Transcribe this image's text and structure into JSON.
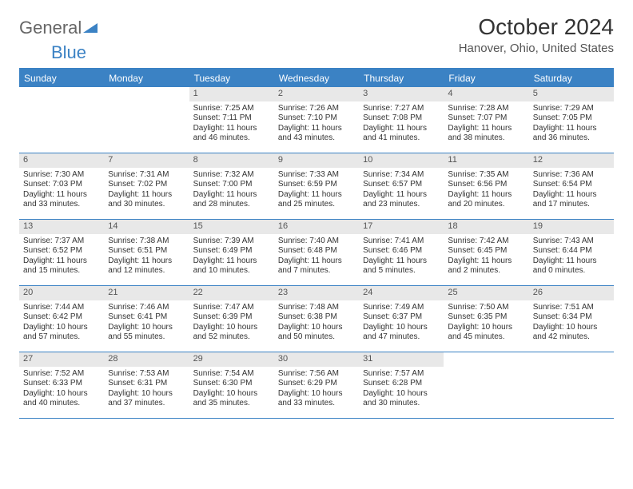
{
  "logo": {
    "text1": "General",
    "text2": "Blue"
  },
  "title": "October 2024",
  "location": "Hanover, Ohio, United States",
  "colors": {
    "accent": "#3b82c4",
    "daynum_bg": "#e8e8e8",
    "text": "#333333",
    "background": "#ffffff"
  },
  "day_headers": [
    "Sunday",
    "Monday",
    "Tuesday",
    "Wednesday",
    "Thursday",
    "Friday",
    "Saturday"
  ],
  "weeks": [
    [
      null,
      null,
      {
        "n": "1",
        "sr": "Sunrise: 7:25 AM",
        "ss": "Sunset: 7:11 PM",
        "dl1": "Daylight: 11 hours",
        "dl2": "and 46 minutes."
      },
      {
        "n": "2",
        "sr": "Sunrise: 7:26 AM",
        "ss": "Sunset: 7:10 PM",
        "dl1": "Daylight: 11 hours",
        "dl2": "and 43 minutes."
      },
      {
        "n": "3",
        "sr": "Sunrise: 7:27 AM",
        "ss": "Sunset: 7:08 PM",
        "dl1": "Daylight: 11 hours",
        "dl2": "and 41 minutes."
      },
      {
        "n": "4",
        "sr": "Sunrise: 7:28 AM",
        "ss": "Sunset: 7:07 PM",
        "dl1": "Daylight: 11 hours",
        "dl2": "and 38 minutes."
      },
      {
        "n": "5",
        "sr": "Sunrise: 7:29 AM",
        "ss": "Sunset: 7:05 PM",
        "dl1": "Daylight: 11 hours",
        "dl2": "and 36 minutes."
      }
    ],
    [
      {
        "n": "6",
        "sr": "Sunrise: 7:30 AM",
        "ss": "Sunset: 7:03 PM",
        "dl1": "Daylight: 11 hours",
        "dl2": "and 33 minutes."
      },
      {
        "n": "7",
        "sr": "Sunrise: 7:31 AM",
        "ss": "Sunset: 7:02 PM",
        "dl1": "Daylight: 11 hours",
        "dl2": "and 30 minutes."
      },
      {
        "n": "8",
        "sr": "Sunrise: 7:32 AM",
        "ss": "Sunset: 7:00 PM",
        "dl1": "Daylight: 11 hours",
        "dl2": "and 28 minutes."
      },
      {
        "n": "9",
        "sr": "Sunrise: 7:33 AM",
        "ss": "Sunset: 6:59 PM",
        "dl1": "Daylight: 11 hours",
        "dl2": "and 25 minutes."
      },
      {
        "n": "10",
        "sr": "Sunrise: 7:34 AM",
        "ss": "Sunset: 6:57 PM",
        "dl1": "Daylight: 11 hours",
        "dl2": "and 23 minutes."
      },
      {
        "n": "11",
        "sr": "Sunrise: 7:35 AM",
        "ss": "Sunset: 6:56 PM",
        "dl1": "Daylight: 11 hours",
        "dl2": "and 20 minutes."
      },
      {
        "n": "12",
        "sr": "Sunrise: 7:36 AM",
        "ss": "Sunset: 6:54 PM",
        "dl1": "Daylight: 11 hours",
        "dl2": "and 17 minutes."
      }
    ],
    [
      {
        "n": "13",
        "sr": "Sunrise: 7:37 AM",
        "ss": "Sunset: 6:52 PM",
        "dl1": "Daylight: 11 hours",
        "dl2": "and 15 minutes."
      },
      {
        "n": "14",
        "sr": "Sunrise: 7:38 AM",
        "ss": "Sunset: 6:51 PM",
        "dl1": "Daylight: 11 hours",
        "dl2": "and 12 minutes."
      },
      {
        "n": "15",
        "sr": "Sunrise: 7:39 AM",
        "ss": "Sunset: 6:49 PM",
        "dl1": "Daylight: 11 hours",
        "dl2": "and 10 minutes."
      },
      {
        "n": "16",
        "sr": "Sunrise: 7:40 AM",
        "ss": "Sunset: 6:48 PM",
        "dl1": "Daylight: 11 hours",
        "dl2": "and 7 minutes."
      },
      {
        "n": "17",
        "sr": "Sunrise: 7:41 AM",
        "ss": "Sunset: 6:46 PM",
        "dl1": "Daylight: 11 hours",
        "dl2": "and 5 minutes."
      },
      {
        "n": "18",
        "sr": "Sunrise: 7:42 AM",
        "ss": "Sunset: 6:45 PM",
        "dl1": "Daylight: 11 hours",
        "dl2": "and 2 minutes."
      },
      {
        "n": "19",
        "sr": "Sunrise: 7:43 AM",
        "ss": "Sunset: 6:44 PM",
        "dl1": "Daylight: 11 hours",
        "dl2": "and 0 minutes."
      }
    ],
    [
      {
        "n": "20",
        "sr": "Sunrise: 7:44 AM",
        "ss": "Sunset: 6:42 PM",
        "dl1": "Daylight: 10 hours",
        "dl2": "and 57 minutes."
      },
      {
        "n": "21",
        "sr": "Sunrise: 7:46 AM",
        "ss": "Sunset: 6:41 PM",
        "dl1": "Daylight: 10 hours",
        "dl2": "and 55 minutes."
      },
      {
        "n": "22",
        "sr": "Sunrise: 7:47 AM",
        "ss": "Sunset: 6:39 PM",
        "dl1": "Daylight: 10 hours",
        "dl2": "and 52 minutes."
      },
      {
        "n": "23",
        "sr": "Sunrise: 7:48 AM",
        "ss": "Sunset: 6:38 PM",
        "dl1": "Daylight: 10 hours",
        "dl2": "and 50 minutes."
      },
      {
        "n": "24",
        "sr": "Sunrise: 7:49 AM",
        "ss": "Sunset: 6:37 PM",
        "dl1": "Daylight: 10 hours",
        "dl2": "and 47 minutes."
      },
      {
        "n": "25",
        "sr": "Sunrise: 7:50 AM",
        "ss": "Sunset: 6:35 PM",
        "dl1": "Daylight: 10 hours",
        "dl2": "and 45 minutes."
      },
      {
        "n": "26",
        "sr": "Sunrise: 7:51 AM",
        "ss": "Sunset: 6:34 PM",
        "dl1": "Daylight: 10 hours",
        "dl2": "and 42 minutes."
      }
    ],
    [
      {
        "n": "27",
        "sr": "Sunrise: 7:52 AM",
        "ss": "Sunset: 6:33 PM",
        "dl1": "Daylight: 10 hours",
        "dl2": "and 40 minutes."
      },
      {
        "n": "28",
        "sr": "Sunrise: 7:53 AM",
        "ss": "Sunset: 6:31 PM",
        "dl1": "Daylight: 10 hours",
        "dl2": "and 37 minutes."
      },
      {
        "n": "29",
        "sr": "Sunrise: 7:54 AM",
        "ss": "Sunset: 6:30 PM",
        "dl1": "Daylight: 10 hours",
        "dl2": "and 35 minutes."
      },
      {
        "n": "30",
        "sr": "Sunrise: 7:56 AM",
        "ss": "Sunset: 6:29 PM",
        "dl1": "Daylight: 10 hours",
        "dl2": "and 33 minutes."
      },
      {
        "n": "31",
        "sr": "Sunrise: 7:57 AM",
        "ss": "Sunset: 6:28 PM",
        "dl1": "Daylight: 10 hours",
        "dl2": "and 30 minutes."
      },
      null,
      null
    ]
  ]
}
